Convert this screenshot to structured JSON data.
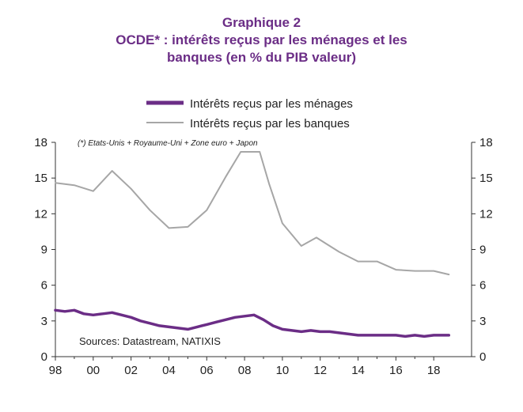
{
  "title": {
    "line1": "Graphique 2",
    "line2": "OCDE* : intérêts reçus par les ménages et les",
    "line3": "banques (en % du PIB valeur)"
  },
  "note": "(*) Etats-Unis + Royaume-Uni + Zone euro + Japon",
  "source": "Sources: Datastream, NATIXIS",
  "colors": {
    "menages": "#6b2d86",
    "banques": "#a6a6a6",
    "title": "#6b2d86"
  },
  "chart_data": {
    "type": "line",
    "x_tick_labels": [
      "98",
      "00",
      "02",
      "04",
      "06",
      "08",
      "10",
      "12",
      "14",
      "16",
      "18"
    ],
    "x_ticks": [
      1998,
      2000,
      2002,
      2004,
      2006,
      2008,
      2010,
      2012,
      2014,
      2016,
      2018
    ],
    "xlim": [
      1998,
      2020
    ],
    "ylim": [
      0,
      18
    ],
    "y_ticks": [
      0,
      3,
      6,
      9,
      12,
      15,
      18
    ],
    "y_tick_labels": [
      "0",
      "3",
      "6",
      "9",
      "12",
      "15",
      "18"
    ],
    "legend_position": "top",
    "grid": false,
    "series": [
      {
        "name": "Intérêts reçus par les ménages",
        "color": "#6b2d86",
        "x": [
          1998.0,
          1998.5,
          1999.0,
          1999.5,
          2000.0,
          2000.5,
          2001.0,
          2001.5,
          2002.0,
          2002.5,
          2003.0,
          2003.5,
          2004.0,
          2004.5,
          2005.0,
          2005.5,
          2006.0,
          2006.5,
          2007.0,
          2007.5,
          2008.0,
          2008.5,
          2009.0,
          2009.5,
          2010.0,
          2010.5,
          2011.0,
          2011.5,
          2012.0,
          2012.5,
          2013.0,
          2013.5,
          2014.0,
          2014.5,
          2015.0,
          2015.5,
          2016.0,
          2016.5,
          2017.0,
          2017.5,
          2018.0,
          2018.8
        ],
        "y": [
          3.9,
          3.8,
          3.9,
          3.6,
          3.5,
          3.6,
          3.7,
          3.5,
          3.3,
          3.0,
          2.8,
          2.6,
          2.5,
          2.4,
          2.3,
          2.5,
          2.7,
          2.9,
          3.1,
          3.3,
          3.4,
          3.5,
          3.1,
          2.6,
          2.3,
          2.2,
          2.1,
          2.2,
          2.1,
          2.1,
          2.0,
          1.9,
          1.8,
          1.8,
          1.8,
          1.8,
          1.8,
          1.7,
          1.8,
          1.7,
          1.8,
          1.8
        ]
      },
      {
        "name": "Intérêts reçus par les banques",
        "color": "#a6a6a6",
        "x": [
          1998.0,
          1999.0,
          2000.0,
          2001.0,
          2002.0,
          2003.0,
          2004.0,
          2005.0,
          2006.0,
          2007.0,
          2007.8,
          2008.3,
          2008.8,
          2009.3,
          2010.0,
          2011.0,
          2011.8,
          2012.3,
          2013.0,
          2014.0,
          2015.0,
          2016.0,
          2017.0,
          2018.0,
          2018.8
        ],
        "y": [
          14.6,
          14.4,
          13.9,
          15.6,
          14.1,
          12.3,
          10.8,
          10.9,
          12.3,
          15.1,
          17.2,
          17.2,
          17.2,
          14.5,
          11.2,
          9.3,
          10.0,
          9.5,
          8.8,
          8.0,
          8.0,
          7.3,
          7.2,
          7.2,
          6.9
        ]
      }
    ]
  }
}
